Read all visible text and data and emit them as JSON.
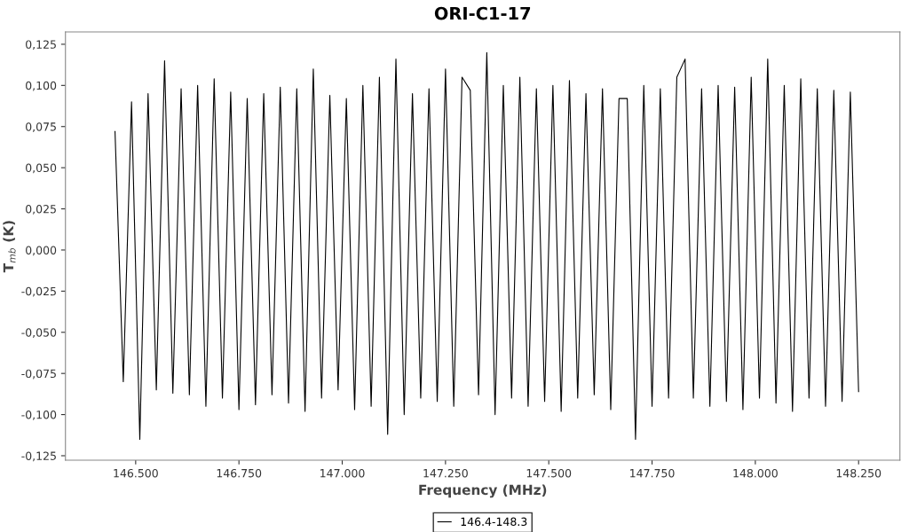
{
  "chart_data": {
    "type": "line",
    "title": "ORI-C1-17",
    "xlabel": "Frequency (MHz)",
    "ylabel": "T$_{mb}$ (K)",
    "xlim": [
      146330,
      148350
    ],
    "ylim": [
      -0.1277,
      0.1325
    ],
    "xticks": [
      {
        "value": 146500,
        "label": "146.500"
      },
      {
        "value": 146750,
        "label": "146.750"
      },
      {
        "value": 147000,
        "label": "147.000"
      },
      {
        "value": 147250,
        "label": "147.250"
      },
      {
        "value": 147500,
        "label": "147.500"
      },
      {
        "value": 147750,
        "label": "147.750"
      },
      {
        "value": 148000,
        "label": "148.000"
      },
      {
        "value": 148250,
        "label": "148.250"
      }
    ],
    "yticks": [
      {
        "value": -0.125,
        "label": "-0,125"
      },
      {
        "value": -0.1,
        "label": "-0,100"
      },
      {
        "value": -0.075,
        "label": "-0,075"
      },
      {
        "value": -0.05,
        "label": "-0,050"
      },
      {
        "value": -0.025,
        "label": "-0,025"
      },
      {
        "value": 0,
        "label": "0,000"
      },
      {
        "value": 0.025,
        "label": "0,025"
      },
      {
        "value": 0.05,
        "label": "0,050"
      },
      {
        "value": 0.075,
        "label": "0,075"
      },
      {
        "value": 0.1,
        "label": "0,100"
      },
      {
        "value": 0.125,
        "label": "0,125"
      }
    ],
    "grid": false,
    "legend": "bottom",
    "marker": "none",
    "line_style": "solid",
    "x": [
      146450,
      146470,
      146490,
      146510,
      146530,
      146550,
      146570,
      146590,
      146610,
      146630,
      146650,
      146670,
      146690,
      146710,
      146730,
      146750,
      146770,
      146790,
      146810,
      146830,
      146850,
      146870,
      146890,
      146910,
      146930,
      146950,
      146970,
      146990,
      147010,
      147030,
      147050,
      147070,
      147090,
      147110,
      147130,
      147150,
      147170,
      147190,
      147210,
      147230,
      147250,
      147270,
      147290,
      147310,
      147330,
      147350,
      147370,
      147390,
      147410,
      147430,
      147450,
      147470,
      147490,
      147510,
      147530,
      147550,
      147570,
      147590,
      147610,
      147630,
      147650,
      147670,
      147690,
      147710,
      147730,
      147750,
      147770,
      147790,
      147810,
      147830,
      147850,
      147870,
      147890,
      147910,
      147930,
      147950,
      147970,
      147990,
      148010,
      148030,
      148050,
      148070,
      148090,
      148110,
      148130,
      148150,
      148170,
      148190,
      148210,
      148230,
      148250
    ],
    "series": [
      {
        "name": "146.4-148.3",
        "color": "#000000",
        "values": [
          0.072,
          -0.08,
          0.09,
          -0.115,
          0.095,
          -0.085,
          0.115,
          -0.087,
          0.098,
          -0.088,
          0.1,
          -0.095,
          0.104,
          -0.09,
          0.096,
          -0.097,
          0.092,
          -0.094,
          0.095,
          -0.088,
          0.099,
          -0.093,
          0.098,
          -0.098,
          0.11,
          -0.09,
          0.094,
          -0.085,
          0.092,
          -0.097,
          0.1,
          -0.095,
          0.105,
          -0.112,
          0.116,
          -0.1,
          0.095,
          -0.09,
          0.098,
          -0.092,
          0.11,
          -0.095,
          0.105,
          0.097,
          -0.088,
          0.12,
          -0.1,
          0.1,
          -0.09,
          0.105,
          -0.095,
          0.098,
          -0.092,
          0.1,
          -0.098,
          0.103,
          -0.09,
          0.095,
          -0.088,
          0.098,
          -0.097,
          0.092,
          0.092,
          -0.115,
          0.1,
          -0.095,
          0.098,
          -0.09,
          0.105,
          0.116,
          -0.09,
          0.098,
          -0.095,
          0.1,
          -0.092,
          0.099,
          -0.097,
          0.105,
          -0.09,
          0.116,
          -0.093,
          0.1,
          -0.098,
          0.104,
          -0.09,
          0.098,
          -0.095,
          0.097,
          -0.092,
          0.096,
          -0.086
        ]
      }
    ]
  }
}
